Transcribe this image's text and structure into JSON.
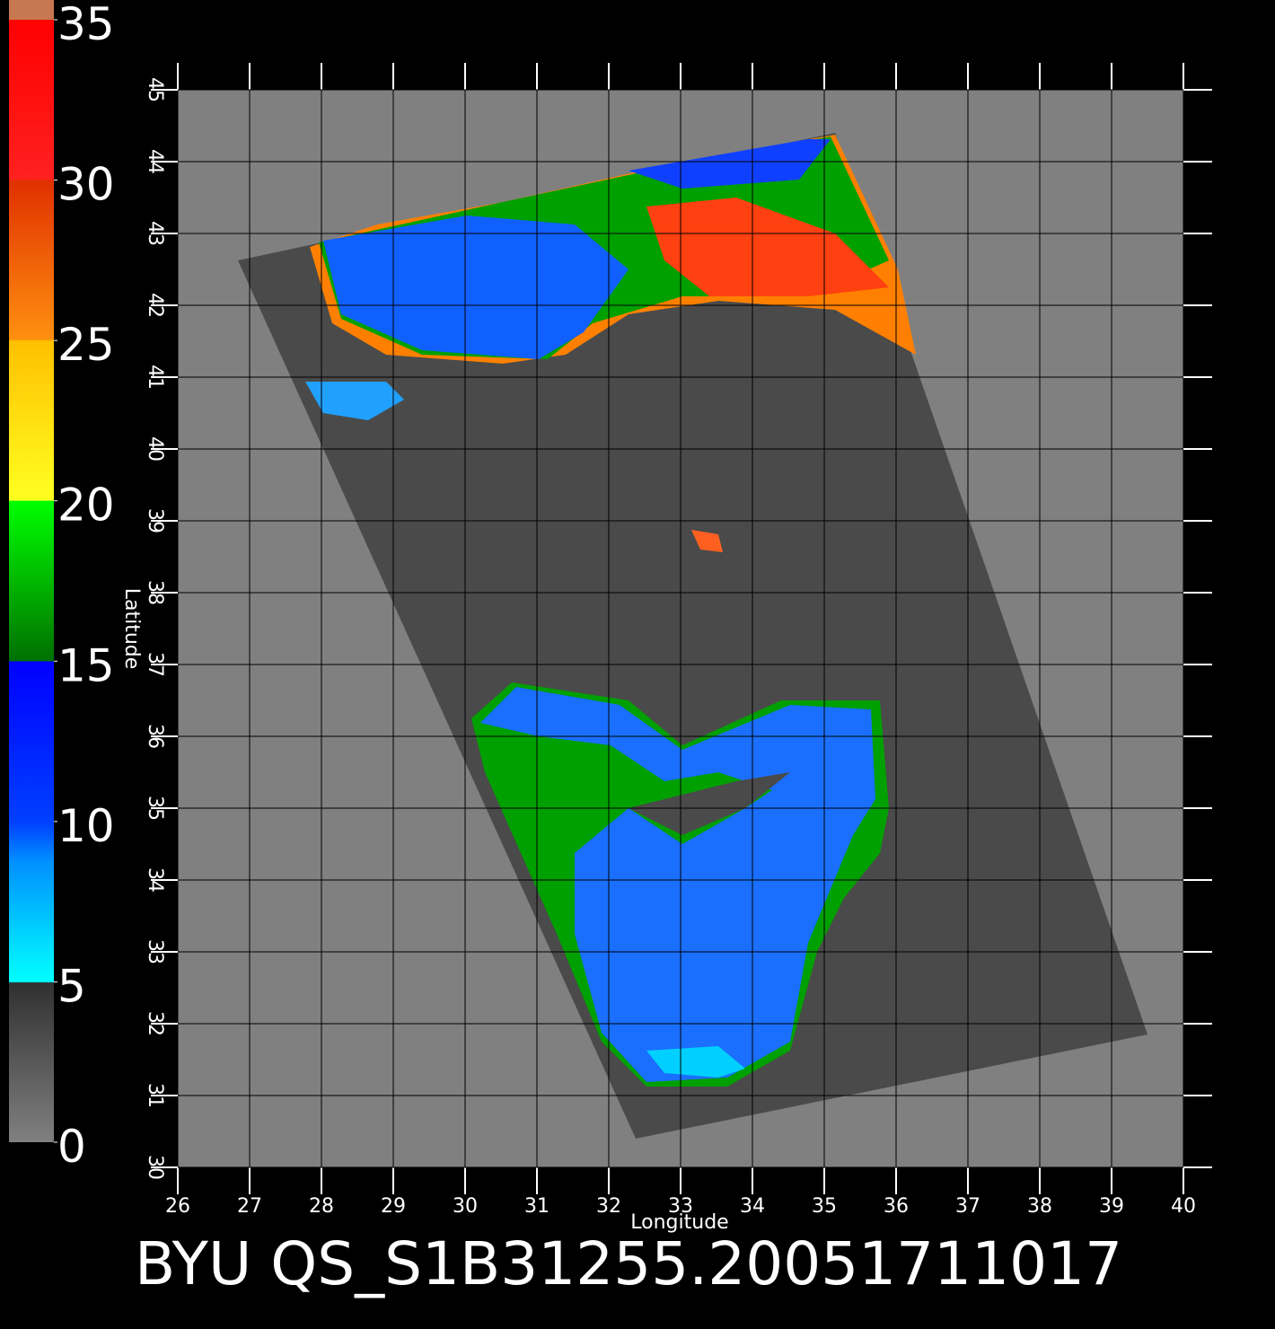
{
  "map": {
    "title": "BYU QS_S1B31255.20051711017",
    "xlabel": "Longitude",
    "ylabel": "Latitude",
    "xlim": [
      26,
      40
    ],
    "ylim": [
      30,
      45
    ],
    "xticks": [
      26,
      27,
      28,
      29,
      30,
      31,
      32,
      33,
      34,
      35,
      36,
      37,
      38,
      39,
      40
    ],
    "yticks": [
      30,
      31,
      32,
      33,
      34,
      35,
      36,
      37,
      38,
      39,
      40,
      41,
      42,
      43,
      44,
      45
    ],
    "colorbar": {
      "lim": [
        0,
        35
      ],
      "ticks": [
        0,
        5,
        10,
        15,
        20,
        25,
        30,
        35
      ]
    }
  }
}
